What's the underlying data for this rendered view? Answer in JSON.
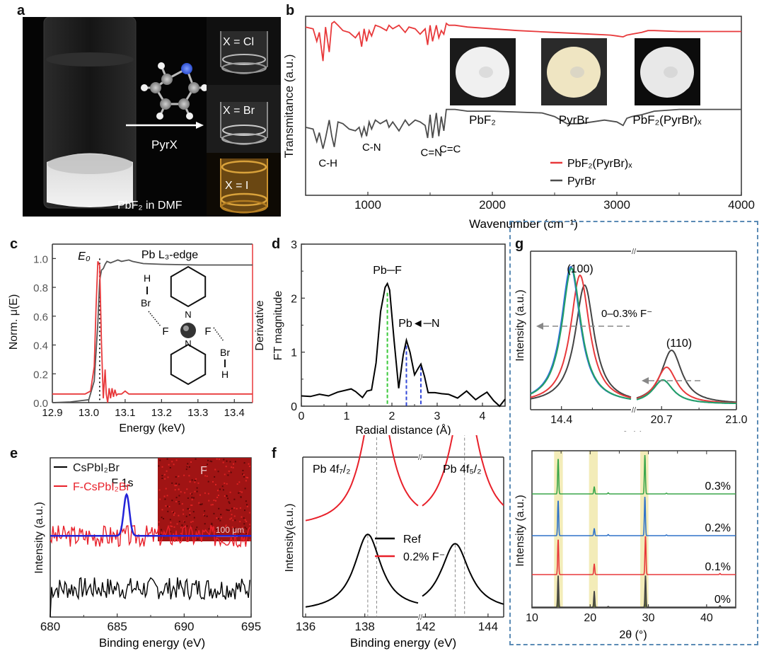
{
  "panel_labels": {
    "a": "a",
    "b": "b",
    "c": "c",
    "d": "d",
    "e": "e",
    "f": "f",
    "g": "g"
  },
  "panel_a": {
    "vial_caption": "PbF₂ in DMF",
    "arrow_label": "PyrX",
    "vials": [
      {
        "label": "X = Cl",
        "liquid_color": "#cfcfcf"
      },
      {
        "label": "X = Br",
        "liquid_color": "#d8d8d8"
      },
      {
        "label": "X = I",
        "liquid_color": "#c8902e"
      }
    ],
    "molecule_atom_colors": {
      "carbon": "#9a9a9a",
      "hydrogen": "#f4f4f4",
      "nitrogen": "#3a5fe0",
      "halogen": "#d93a3a"
    }
  },
  "chart_data": [
    {
      "id": "b",
      "type": "line",
      "title": "",
      "xlabel": "Wavenumber (cm⁻¹)",
      "ylabel": "Transmitance (a.u.)",
      "xlim": [
        500,
        4000
      ],
      "ylim": [
        0,
        1
      ],
      "xticks": [
        1000,
        2000,
        3000,
        4000
      ],
      "series": [
        {
          "name": "PbF₂(PyrBr)ₓ",
          "color": "#e8393b",
          "x": [
            500,
            560,
            590,
            610,
            640,
            660,
            690,
            710,
            730,
            760,
            800,
            850,
            900,
            930,
            950,
            970,
            990,
            1010,
            1030,
            1060,
            1100,
            1150,
            1170,
            1200,
            1250,
            1300,
            1330,
            1380,
            1420,
            1460,
            1480,
            1500,
            1520,
            1550,
            1570,
            1590,
            1610,
            1630,
            1650,
            1700,
            1800,
            2000,
            2200,
            2500,
            2800,
            2950,
            3000,
            3050,
            3080,
            3120,
            3200,
            3250,
            3300,
            3500,
            3800,
            4000
          ],
          "y": [
            0.94,
            0.93,
            0.86,
            0.91,
            0.75,
            0.94,
            0.8,
            0.96,
            0.97,
            0.95,
            0.92,
            0.91,
            0.88,
            0.91,
            0.83,
            0.93,
            0.86,
            0.92,
            0.89,
            0.95,
            0.94,
            0.92,
            0.95,
            0.93,
            0.95,
            0.91,
            0.94,
            0.93,
            0.9,
            0.93,
            0.84,
            0.95,
            0.86,
            0.95,
            0.88,
            0.92,
            0.9,
            0.96,
            0.95,
            0.95,
            0.94,
            0.93,
            0.92,
            0.91,
            0.9,
            0.895,
            0.89,
            0.885,
            0.895,
            0.9,
            0.91,
            0.92,
            0.92,
            0.915,
            0.915,
            0.915
          ]
        },
        {
          "name": "PyrBr",
          "color": "#4d4d4d",
          "x": [
            500,
            560,
            590,
            610,
            640,
            660,
            690,
            710,
            730,
            760,
            800,
            850,
            900,
            930,
            950,
            970,
            990,
            1010,
            1030,
            1060,
            1100,
            1150,
            1170,
            1200,
            1250,
            1300,
            1330,
            1380,
            1420,
            1460,
            1480,
            1500,
            1520,
            1550,
            1570,
            1590,
            1610,
            1630,
            1650,
            1700,
            1800,
            2000,
            2200,
            2400,
            2500,
            2600,
            2700,
            2800,
            2900,
            3000,
            3050,
            3080,
            3120,
            3200,
            3250,
            3300,
            3500,
            3800,
            4000
          ],
          "y": [
            0.38,
            0.37,
            0.3,
            0.35,
            0.26,
            0.32,
            0.42,
            0.33,
            0.27,
            0.41,
            0.4,
            0.37,
            0.36,
            0.38,
            0.33,
            0.38,
            0.33,
            0.41,
            0.37,
            0.42,
            0.4,
            0.42,
            0.38,
            0.41,
            0.36,
            0.42,
            0.39,
            0.42,
            0.41,
            0.39,
            0.32,
            0.45,
            0.32,
            0.46,
            0.33,
            0.44,
            0.36,
            0.48,
            0.48,
            0.48,
            0.47,
            0.47,
            0.465,
            0.46,
            0.44,
            0.4,
            0.4,
            0.41,
            0.42,
            0.41,
            0.39,
            0.43,
            0.44,
            0.45,
            0.46,
            0.47,
            0.48,
            0.48,
            0.48
          ]
        }
      ],
      "annotations": [
        {
          "text": "C-H",
          "x": 680,
          "y": 0.16
        },
        {
          "text": "C-N",
          "x": 1030,
          "y": 0.25
        },
        {
          "text": "C=N",
          "x": 1510,
          "y": 0.22
        },
        {
          "text": "C=C",
          "x": 1660,
          "y": 0.24
        }
      ],
      "insets": [
        {
          "caption": "PbF₂",
          "powder_color": "#f0f0f0",
          "background": "#1a1a1a"
        },
        {
          "caption": "PyrBr",
          "powder_color": "#efe5c2",
          "background": "#2a2a2a"
        },
        {
          "caption": "PbF₂(PyrBr)ₓ",
          "powder_color": "#e8e8e8",
          "background": "#0c0c0c"
        }
      ],
      "legend": "bottom-right"
    },
    {
      "id": "c",
      "type": "line",
      "title": "Pb L₃-edge",
      "xlabel": "Energy (keV)",
      "ylabel": "Norm. μ(E)",
      "ylabel_right": "Derivative",
      "xlim": [
        12.9,
        13.45
      ],
      "ylim": [
        0,
        1.1
      ],
      "xticks": [
        12.9,
        13.0,
        13.1,
        13.2,
        13.3,
        13.4
      ],
      "xtick_labels": [
        "12.9",
        "13.0",
        "13.1",
        "13.2",
        "13.3",
        "13.4"
      ],
      "yticks": [
        0.0,
        0.2,
        0.4,
        0.6,
        0.8,
        1.0
      ],
      "ytick_labels": [
        "0.0",
        "0.2",
        "0.4",
        "0.6",
        "0.8",
        "1.0"
      ],
      "e0_label": "E₀",
      "e0": 13.03,
      "series": [
        {
          "name": "Norm. μ(E)",
          "color": "#555555",
          "x": [
            12.9,
            12.95,
            13.0,
            13.015,
            13.025,
            13.03,
            13.035,
            13.04,
            13.045,
            13.05,
            13.06,
            13.07,
            13.08,
            13.09,
            13.1,
            13.11,
            13.12,
            13.15,
            13.2,
            13.3,
            13.45
          ],
          "y": [
            0.0,
            0.005,
            0.02,
            0.15,
            0.55,
            0.85,
            0.92,
            0.93,
            0.96,
            0.98,
            0.97,
            0.98,
            0.99,
            0.98,
            0.985,
            0.99,
            0.98,
            0.965,
            0.96,
            0.955,
            0.955
          ]
        },
        {
          "name": "Derivative",
          "color": "#e8393b",
          "x": [
            12.9,
            12.95,
            12.99,
            13.005,
            13.015,
            13.02,
            13.025,
            13.03,
            13.035,
            13.04,
            13.045,
            13.048,
            13.052,
            13.056,
            13.06,
            13.064,
            13.068,
            13.072,
            13.076,
            13.08,
            13.09,
            13.1,
            13.11,
            13.12,
            13.2,
            13.3,
            13.45
          ],
          "y": [
            0.06,
            0.06,
            0.06,
            0.08,
            0.25,
            0.65,
            0.98,
            0.95,
            0.4,
            0.03,
            0.23,
            0.06,
            0.0,
            0.1,
            0.03,
            0.1,
            0.04,
            0.09,
            0.05,
            0.06,
            0.06,
            0.08,
            0.06,
            0.06,
            0.06,
            0.06,
            0.06
          ]
        }
      ],
      "inset_structure": {
        "bonds": [
          "H",
          "Br",
          "F",
          "Pb",
          "N",
          "N",
          "F",
          "Br",
          "H"
        ]
      }
    },
    {
      "id": "d",
      "type": "line",
      "xlabel": "Radial distance (Å)",
      "ylabel": "FT magnitude",
      "xlim": [
        0,
        4.5
      ],
      "ylim": [
        0,
        3
      ],
      "xticks": [
        0,
        1,
        2,
        3,
        4
      ],
      "yticks": [
        0,
        1,
        2,
        3
      ],
      "series": [
        {
          "name": "FT",
          "color": "#000000",
          "x": [
            0,
            0.2,
            0.4,
            0.6,
            0.8,
            1.0,
            1.1,
            1.2,
            1.35,
            1.45,
            1.55,
            1.65,
            1.75,
            1.85,
            1.9,
            1.95,
            2.05,
            2.15,
            2.25,
            2.32,
            2.4,
            2.5,
            2.58,
            2.64,
            2.72,
            2.8,
            2.95,
            3.1,
            3.25,
            3.45,
            3.65,
            3.85,
            3.95,
            4.1,
            4.25,
            4.38,
            4.5
          ],
          "y": [
            0.19,
            0.18,
            0.22,
            0.19,
            0.26,
            0.3,
            0.32,
            0.27,
            0.16,
            0.28,
            0.3,
            0.8,
            1.75,
            2.2,
            2.27,
            2.15,
            1.2,
            0.33,
            0.95,
            1.22,
            1.0,
            0.58,
            0.7,
            0.78,
            0.55,
            0.25,
            0.25,
            0.23,
            0.22,
            0.15,
            0.28,
            0.12,
            0.18,
            0.26,
            0.1,
            0.0,
            0.13
          ]
        }
      ],
      "dashed_markers": [
        {
          "x": 1.9,
          "y": 2.1,
          "color": "#3ac93a"
        },
        {
          "x": 2.32,
          "y": 1.12,
          "color": "#3348d8"
        },
        {
          "x": 2.64,
          "y": 0.73,
          "color": "#3348d8"
        }
      ],
      "annotations": [
        {
          "text": "Pb─F",
          "x": 1.9,
          "y": 2.45
        },
        {
          "text": "Pb◄─N",
          "x": 2.6,
          "y": 1.47
        }
      ]
    },
    {
      "id": "e",
      "type": "line",
      "xlabel": "Binding energy (eV)",
      "ylabel": "Intensity (a.u.)",
      "xlim": [
        680,
        695
      ],
      "ylim": [
        0,
        1
      ],
      "xticks": [
        680,
        685,
        690,
        695
      ],
      "peak_label": "F 1s",
      "inset_map": {
        "element": "F",
        "scale_bar": "100 μm",
        "color": "#a01414"
      },
      "series": [
        {
          "name": "CsPbI₂Br",
          "color": "#000000",
          "noise_seed": 7,
          "baseline": 0.18,
          "amplitude": 0.07
        },
        {
          "name": "F-CsPbI₂Br",
          "color": "#e8202a",
          "noise_seed": 3,
          "baseline": 0.51,
          "amplitude": 0.07
        },
        {
          "name": "F 1s fit",
          "color": "#2323d8",
          "peak_center": 685.7,
          "peak_height": 0.26,
          "peak_width": 0.3,
          "baseline": 0.51
        }
      ],
      "legend": "top-left"
    },
    {
      "id": "f",
      "type": "line",
      "xlabel": "Binding energy (eV)",
      "ylabel": "Intensity(a.u.)",
      "segments": [
        [
          136,
          139.8
        ],
        [
          141.9,
          144.5
        ]
      ],
      "xticks": [
        136,
        138,
        142,
        144
      ],
      "peak_labels": [
        "Pb  4f₇/₂",
        "Pb  4f₅/₂"
      ],
      "series": [
        {
          "name": "Ref",
          "color": "#000000",
          "peaks": [
            {
              "center": 138.1,
              "height": 0.82,
              "width": 0.55
            },
            {
              "center": 142.95,
              "height": 0.72,
              "width": 0.55
            }
          ],
          "baseline": 0.05
        },
        {
          "name": "0.2% F⁻",
          "color": "#e8202a",
          "peaks": [
            {
              "center": 138.4,
              "height": 1.55,
              "width": 0.55
            },
            {
              "center": 143.25,
              "height": 1.44,
              "width": 0.55
            }
          ],
          "baseline": 0.94
        }
      ],
      "legend": "center"
    },
    {
      "id": "g_top",
      "type": "line",
      "xlabel": "2θ (°)",
      "ylabel": "Intensity (a.u.)",
      "segments": [
        [
          14.2,
          14.85
        ],
        [
          20.6,
          21.0
        ]
      ],
      "xticks": [
        14.4,
        20.7,
        21.0
      ],
      "xtick_labels": [
        "14.4",
        "20.7",
        "21.0"
      ],
      "annotations": [
        "(100)",
        "(110)",
        "0–0.3% F⁻"
      ],
      "series": [
        {
          "name": "0%",
          "color": "#444444",
          "p100": {
            "center": 14.55,
            "height": 0.84
          },
          "p110": {
            "center": 20.74,
            "height": 0.38
          }
        },
        {
          "name": "0.1%",
          "color": "#e8393b",
          "p100": {
            "center": 14.52,
            "height": 0.91
          },
          "p110": {
            "center": 20.72,
            "height": 0.26
          }
        },
        {
          "name": "0.2%",
          "color": "#2f6ee0",
          "p100": {
            "center": 14.46,
            "height": 0.97
          },
          "p110": {
            "center": 20.705,
            "height": 0.17
          }
        },
        {
          "name": "0.3%",
          "color": "#23a065",
          "p100": {
            "center": 14.465,
            "height": 0.96
          },
          "p110": {
            "center": 20.705,
            "height": 0.17
          }
        }
      ]
    },
    {
      "id": "g_bottom",
      "type": "line",
      "xlabel": "2θ (°)",
      "ylabel": "Intensity (a.u.)",
      "xlim": [
        10,
        45
      ],
      "xticks": [
        10,
        20,
        30,
        40
      ],
      "highlight_bands": [
        [
          13.8,
          15.3
        ],
        [
          19.8,
          21.3
        ],
        [
          28.6,
          30.0
        ]
      ],
      "highlight_color": "#f3ecb8",
      "series": [
        {
          "name": "0.3%",
          "color": "#3aa64a",
          "peaks": [
            [
              14.5,
              1.0
            ],
            [
              20.7,
              0.2
            ],
            [
              23.1,
              0.03
            ],
            [
              29.4,
              1.1
            ],
            [
              33.1,
              0.02
            ]
          ]
        },
        {
          "name": "0.2%",
          "color": "#2f72c8",
          "peaks": [
            [
              14.5,
              1.0
            ],
            [
              20.7,
              0.2
            ],
            [
              23.1,
              0.03
            ],
            [
              29.4,
              1.1
            ],
            [
              33.1,
              0.02
            ]
          ]
        },
        {
          "name": "0.1%",
          "color": "#e8393b",
          "peaks": [
            [
              14.5,
              1.0
            ],
            [
              20.7,
              0.3
            ],
            [
              29.5,
              1.1
            ],
            [
              42.3,
              0.03
            ]
          ]
        },
        {
          "name": "0%",
          "color": "#444444",
          "peak_fill": "#5f6a35",
          "peaks": [
            [
              14.5,
              0.9
            ],
            [
              20.7,
              0.45
            ],
            [
              23.1,
              0.02
            ],
            [
              29.5,
              0.9
            ],
            [
              42.3,
              0.04
            ]
          ]
        }
      ]
    }
  ]
}
